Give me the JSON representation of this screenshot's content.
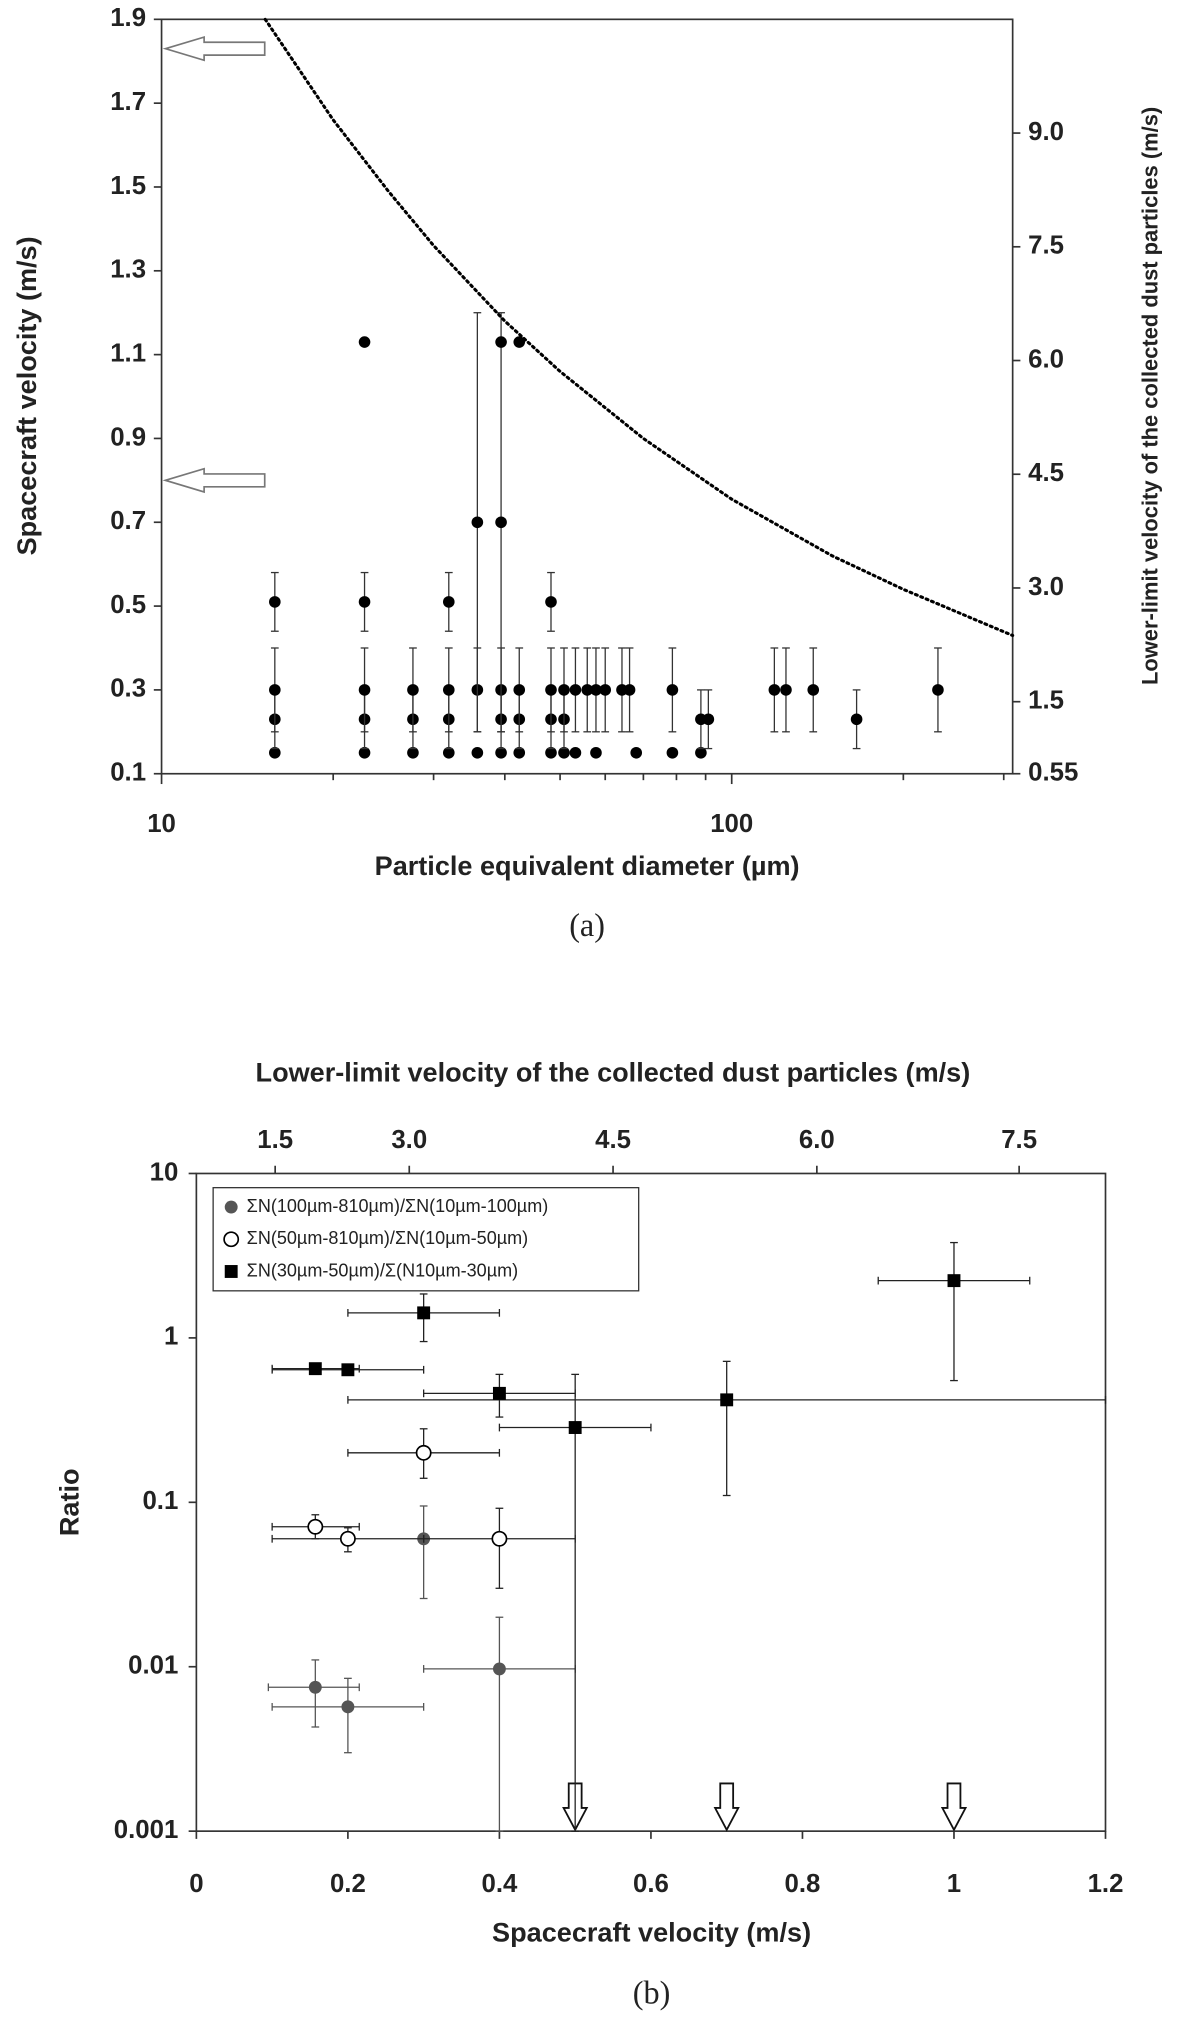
{
  "chart_data": [
    {
      "type": "scatter",
      "xscale": "log",
      "xlabel": "Particle equivalent diameter (µm)",
      "ylabel": "Spacecraft velocity (m/s)",
      "y2label": "Lower-limit velocity of the collected dust particles (m/s)",
      "caption": "(a)",
      "xlim": [
        10,
        311
      ],
      "xticks": [
        10,
        100
      ],
      "xminorticks": [
        20,
        30,
        40,
        50,
        60,
        70,
        80,
        90,
        200,
        300
      ],
      "ylim": [
        0.1,
        1.9
      ],
      "yticks": [
        0.1,
        0.3,
        0.5,
        0.7,
        0.9,
        1.1,
        1.3,
        1.5,
        1.7,
        1.9
      ],
      "y2lim": [
        0.55,
        10.5
      ],
      "y2ticks": [
        0.55,
        1.5,
        {
          "value": 3,
          "label": "3.0"
        },
        4.5,
        {
          "value": 6,
          "label": "6.0"
        },
        7.5,
        {
          "value": 9,
          "label": "9.0"
        }
      ],
      "arrows": [
        1.83,
        0.8
      ],
      "series": [
        {
          "kind": "points",
          "color": "#000000",
          "x": [
            15.8,
            15.8,
            15.8,
            15.8,
            22.7,
            22.7,
            22.7,
            22.7,
            22.7,
            27.6,
            27.6,
            27.6,
            31.9,
            31.9,
            31.9,
            31.9,
            35.8,
            35.8,
            35.8,
            39.4,
            39.4,
            39.4,
            39.4,
            39.4,
            42.4,
            42.4,
            42.4,
            42.4,
            48.2,
            48.2,
            48.2,
            48.2,
            50.8,
            50.8,
            50.8,
            53.2,
            53.2,
            55.8,
            57.8,
            57.8,
            60,
            64.2,
            66.2,
            68,
            78.7,
            78.7,
            88.3,
            88.3,
            91,
            118.8,
            124.5,
            139,
            165.6,
            230
          ],
          "values": [
            0.15,
            0.23,
            0.3,
            0.51,
            0.15,
            0.23,
            0.3,
            0.51,
            1.13,
            0.15,
            0.23,
            0.3,
            0.15,
            0.23,
            0.3,
            0.51,
            0.15,
            0.3,
            0.7,
            0.15,
            0.23,
            0.3,
            0.7,
            1.13,
            0.15,
            0.23,
            0.3,
            1.13,
            0.15,
            0.23,
            0.3,
            0.51,
            0.15,
            0.23,
            0.3,
            0.15,
            0.3,
            0.3,
            0.15,
            0.3,
            0.3,
            0.3,
            0.3,
            0.15,
            0.15,
            0.3,
            0.15,
            0.23,
            0.23,
            0.3,
            0.3,
            0.3,
            0.23,
            0.3
          ],
          "errors": [
            0,
            0.07,
            0.1,
            0.07,
            0,
            0.07,
            0.1,
            0.07,
            0,
            0,
            0.07,
            0.1,
            0,
            0.07,
            0.1,
            0.07,
            0,
            0.1,
            0.5,
            0,
            0.07,
            0.1,
            0.5,
            0,
            0,
            0.07,
            0.1,
            0,
            0,
            0.07,
            0.1,
            0.07,
            0,
            0.07,
            0.1,
            0,
            0.1,
            0.1,
            0,
            0.1,
            0.1,
            0.1,
            0.1,
            0,
            0,
            0.1,
            0,
            0.07,
            0.07,
            0.1,
            0.1,
            0.1,
            0.07,
            0.1
          ]
        },
        {
          "kind": "curve",
          "style": "dotted",
          "color": "#000000",
          "x": [
            15.2,
            20,
            25,
            30,
            40,
            50,
            70,
            100,
            150,
            200,
            311
          ],
          "values": [
            1.9,
            1.66,
            1.49,
            1.36,
            1.18,
            1.06,
            0.9,
            0.755,
            0.62,
            0.54,
            0.43
          ]
        }
      ]
    },
    {
      "type": "scatter",
      "yscale": "log",
      "xlabel": "Spacecraft velocity (m/s)",
      "ylabel": "Ratio",
      "x2label": "Lower-limit velocity of the collected dust particles (m/s)",
      "caption": "(b)",
      "xlim": [
        0,
        1.2
      ],
      "xticks": [
        0,
        0.2,
        0.4,
        0.6,
        0.8,
        1,
        1.2
      ],
      "ylim": [
        0.001,
        10
      ],
      "yticks": [
        10,
        1,
        0.1,
        0.01,
        0.001
      ],
      "x2ticks": [
        1.5,
        {
          "value": 3,
          "label": "3.0"
        },
        4.5,
        {
          "value": 6,
          "label": "6.0"
        },
        7.5
      ],
      "x2_at": [
        0.104,
        0.281,
        0.55,
        0.819,
        1.086
      ],
      "legend": "upper left",
      "arrows": [
        0.5,
        0.7,
        1
      ],
      "series": [
        {
          "name": "ΣN(100µm-810µm)/ΣN(10µm-100µm)",
          "marker": "circle",
          "color": "#555555",
          "x": [
            0.157,
            0.2,
            0.3,
            0.4
          ],
          "values": [
            0.0075,
            0.0057,
            0.06,
            0.0097
          ],
          "x_lower": [
            0.095,
            0.1,
            null,
            0.3
          ],
          "x_upper": [
            0.215,
            0.3,
            null,
            0.5
          ],
          "y_lower": [
            0.0043,
            0.003,
            0.026,
            0.001
          ],
          "y_upper": [
            0.011,
            0.0085,
            0.095,
            0.02
          ]
        },
        {
          "name": "ΣN(50µm-810µm)/ΣN(10µm-50µm)",
          "marker": "circle-open",
          "color": "#000000",
          "x": [
            0.157,
            0.2,
            0.3,
            0.4
          ],
          "values": [
            0.071,
            0.06,
            0.2,
            0.06
          ],
          "x_lower": [
            0.1,
            0.1,
            0.2,
            0.3
          ],
          "x_upper": [
            0.215,
            0.3,
            0.4,
            0.5
          ],
          "y_lower": [
            0.06,
            0.05,
            0.14,
            0.03
          ],
          "y_upper": [
            0.084,
            0.07,
            0.28,
            0.092
          ]
        },
        {
          "name": "ΣN(30µm-50µm)/Σ(N10µm-30µm)",
          "marker": "square",
          "color": "#000000",
          "x": [
            0.157,
            0.2,
            0.3,
            0.4,
            0.5,
            0.7,
            1
          ],
          "values": [
            0.65,
            0.64,
            1.42,
            0.46,
            0.285,
            0.42,
            2.23
          ],
          "x_lower": [
            0.1,
            0.1,
            0.2,
            0.3,
            0.4,
            0.2,
            0.9
          ],
          "x_upper": [
            0.215,
            0.3,
            0.4,
            0.5,
            0.6,
            1.2,
            1.1
          ],
          "y_lower": [
            0.6,
            0.6,
            0.95,
            0.33,
            0.001,
            0.11,
            0.55
          ],
          "y_upper": [
            0.7,
            0.69,
            1.85,
            0.6,
            0.6,
            0.72,
            3.8
          ]
        }
      ]
    }
  ]
}
